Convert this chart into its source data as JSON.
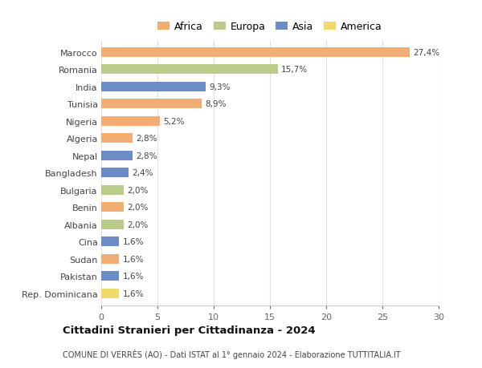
{
  "countries": [
    "Marocco",
    "Romania",
    "India",
    "Tunisia",
    "Nigeria",
    "Algeria",
    "Nepal",
    "Bangladesh",
    "Bulgaria",
    "Benin",
    "Albania",
    "Cina",
    "Sudan",
    "Pakistan",
    "Rep. Dominicana"
  ],
  "values": [
    27.4,
    15.7,
    9.3,
    8.9,
    5.2,
    2.8,
    2.8,
    2.4,
    2.0,
    2.0,
    2.0,
    1.6,
    1.6,
    1.6,
    1.6
  ],
  "labels": [
    "27,4%",
    "15,7%",
    "9,3%",
    "8,9%",
    "5,2%",
    "2,8%",
    "2,8%",
    "2,4%",
    "2,0%",
    "2,0%",
    "2,0%",
    "1,6%",
    "1,6%",
    "1,6%",
    "1,6%"
  ],
  "continents": [
    "Africa",
    "Europa",
    "Asia",
    "Africa",
    "Africa",
    "Africa",
    "Asia",
    "Asia",
    "Europa",
    "Africa",
    "Europa",
    "Asia",
    "Africa",
    "Asia",
    "America"
  ],
  "colors": {
    "Africa": "#F2AE72",
    "Europa": "#BBCC8A",
    "Asia": "#6B8CC4",
    "America": "#F2D96B"
  },
  "xlim": [
    0,
    30
  ],
  "xticks": [
    0,
    5,
    10,
    15,
    20,
    25,
    30
  ],
  "title": "Cittadini Stranieri per Cittadinanza - 2024",
  "subtitle": "COMUNE DI VERRÈS (AO) - Dati ISTAT al 1° gennaio 2024 - Elaborazione TUTTITALIA.IT",
  "background_color": "#ffffff",
  "grid_color": "#e0e0e0"
}
